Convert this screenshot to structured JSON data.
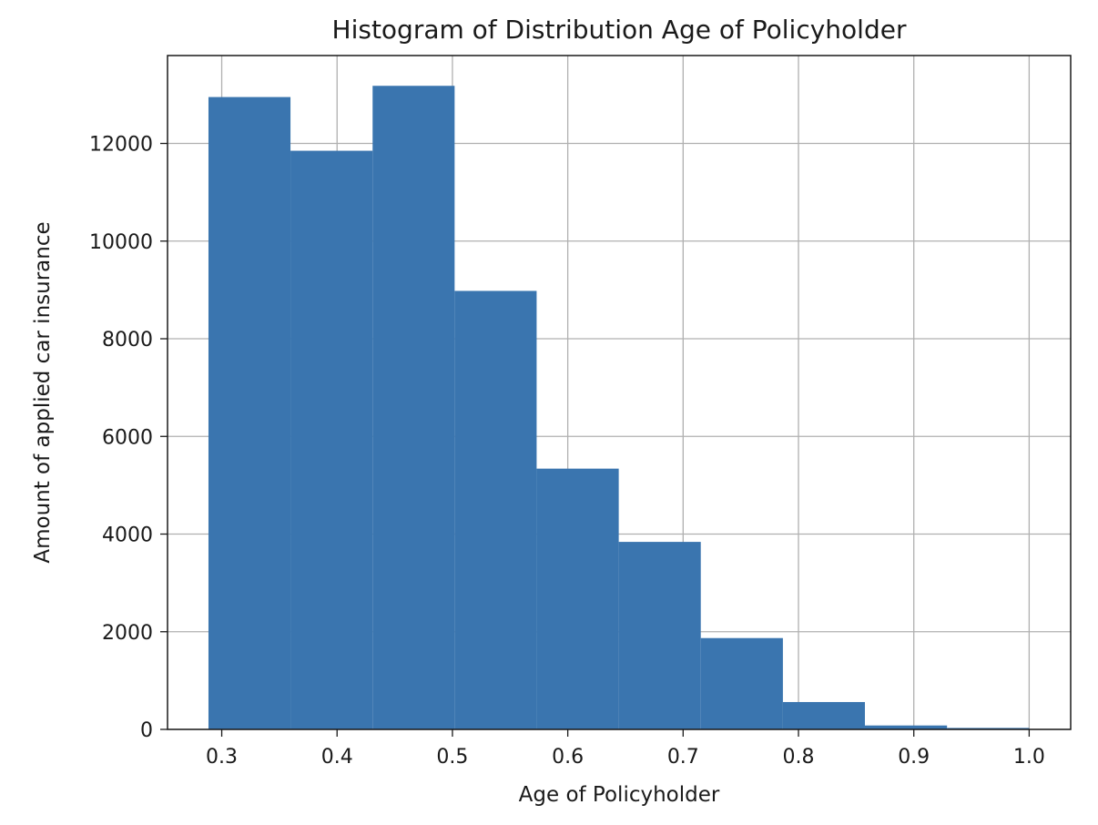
{
  "chart_data": {
    "type": "bar",
    "title": "Histogram of Distribution Age of Policyholder",
    "xlabel": "Age of Policyholder",
    "ylabel": "Amount of applied car insurance",
    "bin_edges": [
      0.2885,
      0.3596,
      0.4308,
      0.5019,
      0.573,
      0.6442,
      0.7153,
      0.7865,
      0.8576,
      0.9288,
      1.0
    ],
    "values": [
      12950,
      11850,
      13180,
      8980,
      5340,
      3840,
      1870,
      560,
      80,
      30
    ],
    "xlim": [
      0.253,
      1.036
    ],
    "ylim": [
      0,
      13800
    ],
    "xticks": [
      0.3,
      0.4,
      0.5,
      0.6,
      0.7,
      0.8,
      0.9,
      1.0
    ],
    "xtick_labels": [
      "0.3",
      "0.4",
      "0.5",
      "0.6",
      "0.7",
      "0.8",
      "0.9",
      "1.0"
    ],
    "yticks": [
      0,
      2000,
      4000,
      6000,
      8000,
      10000,
      12000
    ],
    "ytick_labels": [
      "0",
      "2000",
      "4000",
      "6000",
      "8000",
      "10000",
      "12000"
    ],
    "grid": true,
    "bar_color": "#3a75af",
    "grid_color": "#b0b0b0"
  }
}
